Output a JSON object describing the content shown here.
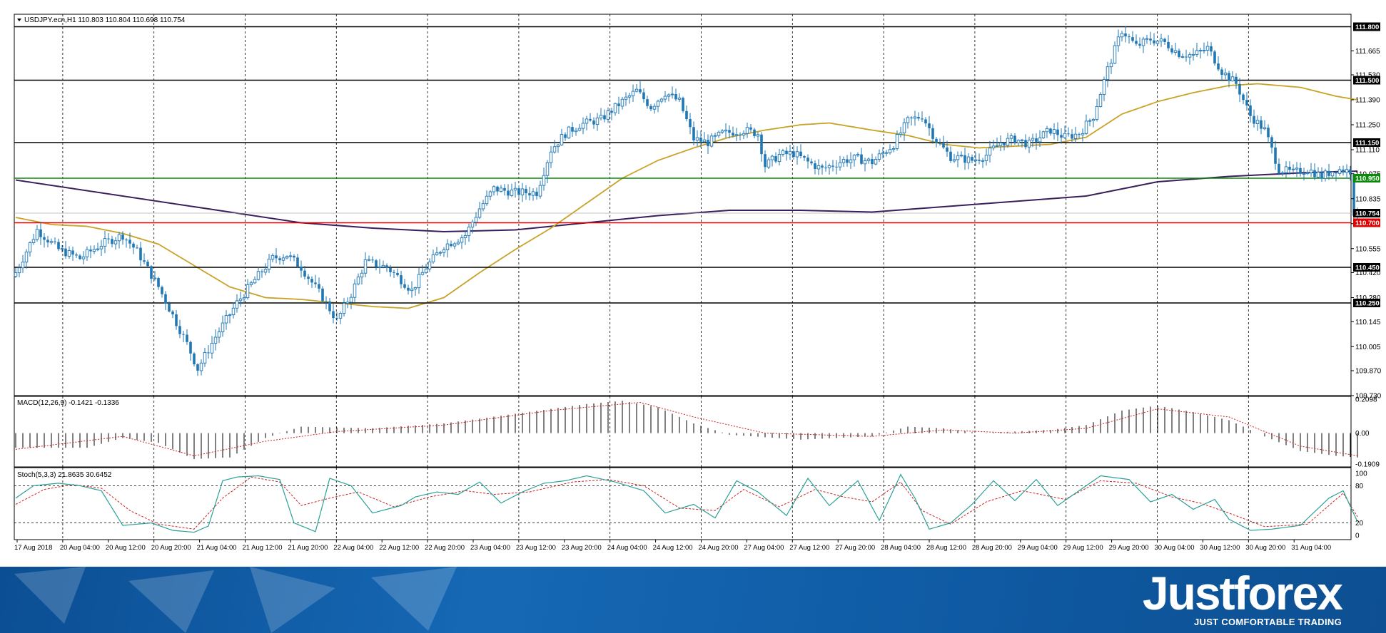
{
  "header": {
    "symbol_info": "USDJPY.ecn,H1  110.803 110.804 110.698 110.754"
  },
  "indicators": {
    "macd_label": "MACD(12,26,9) -0.1421 -0.1336",
    "stoch_label": "Stoch(5,3,3) 21.8635 30.6452"
  },
  "colors": {
    "candle": "#1f77b4",
    "sma_fast": "#c9a227",
    "sma_slow": "#3b1f5c",
    "support_resistance": "#000000",
    "green_level": "#0a8a0a",
    "red_level": "#e00000",
    "stoch_main": "#2aa198",
    "stoch_signal": "#cc2222"
  },
  "brand": {
    "name": "Justforex",
    "tagline": "JUST COMFORTABLE TRADING"
  },
  "chart_data": [
    {
      "type": "candlestick",
      "symbol": "USDJPY.ecn",
      "timeframe": "H1",
      "ylim": [
        109.73,
        111.87
      ],
      "y_ticks": [
        "111.665",
        "111.530",
        "111.390",
        "111.250",
        "111.110",
        "110.975",
        "110.835",
        "110.695",
        "110.555",
        "110.420",
        "110.280",
        "110.145",
        "110.005",
        "109.870",
        "109.730"
      ],
      "x_ticks": [
        "17 Aug 2018",
        "20 Aug 04:00",
        "20 Aug 12:00",
        "20 Aug 20:00",
        "21 Aug 04:00",
        "21 Aug 12:00",
        "21 Aug 20:00",
        "22 Aug 04:00",
        "22 Aug 12:00",
        "22 Aug 20:00",
        "23 Aug 04:00",
        "23 Aug 12:00",
        "23 Aug 20:00",
        "24 Aug 04:00",
        "24 Aug 12:00",
        "24 Aug 20:00",
        "27 Aug 04:00",
        "27 Aug 12:00",
        "27 Aug 20:00",
        "28 Aug 04:00",
        "28 Aug 12:00",
        "28 Aug 20:00",
        "29 Aug 04:00",
        "29 Aug 12:00",
        "29 Aug 20:00",
        "30 Aug 04:00",
        "30 Aug 12:00",
        "30 Aug 20:00",
        "31 Aug 04:00"
      ],
      "current_price": "110.754",
      "horizontal_levels": [
        {
          "value": 111.8,
          "label": "111.800",
          "color": "#000000"
        },
        {
          "value": 111.5,
          "label": "111.500",
          "color": "#000000"
        },
        {
          "value": 111.15,
          "label": "111.150",
          "color": "#000000"
        },
        {
          "value": 110.95,
          "label": "110.950",
          "color": "#0a8a0a"
        },
        {
          "value": 110.7,
          "label": "110.700",
          "color": "#e00000"
        },
        {
          "value": 110.45,
          "label": "110.450",
          "color": "#000000"
        },
        {
          "value": 110.25,
          "label": "110.250",
          "color": "#000000"
        }
      ],
      "close_path": [
        [
          0,
          110.42
        ],
        [
          6,
          110.66
        ],
        [
          12,
          110.55
        ],
        [
          18,
          110.5
        ],
        [
          24,
          110.58
        ],
        [
          30,
          110.63
        ],
        [
          34,
          110.54
        ],
        [
          40,
          110.34
        ],
        [
          44,
          110.18
        ],
        [
          48,
          110.02
        ],
        [
          51,
          109.88
        ],
        [
          56,
          110.06
        ],
        [
          62,
          110.25
        ],
        [
          67,
          110.38
        ],
        [
          72,
          110.5
        ],
        [
          76,
          110.52
        ],
        [
          80,
          110.45
        ],
        [
          86,
          110.28
        ],
        [
          90,
          110.15
        ],
        [
          94,
          110.3
        ],
        [
          98,
          110.48
        ],
        [
          104,
          110.45
        ],
        [
          108,
          110.38
        ],
        [
          111,
          110.32
        ],
        [
          115,
          110.45
        ],
        [
          120,
          110.57
        ],
        [
          126,
          110.63
        ],
        [
          130,
          110.78
        ],
        [
          134,
          110.89
        ],
        [
          140,
          110.87
        ],
        [
          146,
          110.87
        ],
        [
          150,
          111.11
        ],
        [
          154,
          111.2
        ],
        [
          158,
          111.25
        ],
        [
          164,
          111.28
        ],
        [
          170,
          111.38
        ],
        [
          174,
          111.44
        ],
        [
          178,
          111.35
        ],
        [
          182,
          111.43
        ],
        [
          186,
          111.38
        ],
        [
          190,
          111.17
        ],
        [
          194,
          111.15
        ],
        [
          198,
          111.2
        ],
        [
          204,
          111.22
        ],
        [
          208,
          111.2
        ],
        [
          210,
          111.02
        ],
        [
          214,
          111.08
        ],
        [
          218,
          111.09
        ],
        [
          222,
          111.04
        ],
        [
          226,
          111.0
        ],
        [
          232,
          111.05
        ],
        [
          236,
          111.06
        ],
        [
          240,
          111.04
        ],
        [
          246,
          111.14
        ],
        [
          250,
          111.27
        ],
        [
          254,
          111.3
        ],
        [
          258,
          111.16
        ],
        [
          262,
          111.07
        ],
        [
          268,
          111.05
        ],
        [
          272,
          111.08
        ],
        [
          276,
          111.15
        ],
        [
          280,
          111.17
        ],
        [
          284,
          111.14
        ],
        [
          290,
          111.22
        ],
        [
          294,
          111.18
        ],
        [
          298,
          111.2
        ],
        [
          302,
          111.3
        ],
        [
          306,
          111.56
        ],
        [
          310,
          111.78
        ],
        [
          314,
          111.69
        ],
        [
          318,
          111.73
        ],
        [
          322,
          111.71
        ],
        [
          326,
          111.65
        ],
        [
          330,
          111.64
        ],
        [
          334,
          111.68
        ],
        [
          338,
          111.55
        ],
        [
          342,
          111.48
        ],
        [
          346,
          111.3
        ],
        [
          350,
          111.22
        ],
        [
          354,
          111.0
        ],
        [
          358,
          110.98
        ],
        [
          362,
          111.0
        ],
        [
          366,
          110.96
        ],
        [
          370,
          111.0
        ],
        [
          374,
          110.99
        ],
        [
          375,
          110.76
        ],
        [
          376,
          110.75
        ]
      ],
      "sma_fast": [
        [
          0,
          110.73
        ],
        [
          10,
          110.69
        ],
        [
          20,
          110.68
        ],
        [
          30,
          110.64
        ],
        [
          40,
          110.58
        ],
        [
          50,
          110.46
        ],
        [
          60,
          110.34
        ],
        [
          70,
          110.28
        ],
        [
          80,
          110.27
        ],
        [
          90,
          110.25
        ],
        [
          100,
          110.23
        ],
        [
          110,
          110.22
        ],
        [
          120,
          110.28
        ],
        [
          130,
          110.42
        ],
        [
          140,
          110.55
        ],
        [
          150,
          110.67
        ],
        [
          160,
          110.81
        ],
        [
          170,
          110.95
        ],
        [
          180,
          111.05
        ],
        [
          190,
          111.12
        ],
        [
          200,
          111.18
        ],
        [
          210,
          111.22
        ],
        [
          220,
          111.25
        ],
        [
          228,
          111.26
        ],
        [
          240,
          111.22
        ],
        [
          250,
          111.19
        ],
        [
          260,
          111.14
        ],
        [
          270,
          111.12
        ],
        [
          280,
          111.13
        ],
        [
          290,
          111.14
        ],
        [
          300,
          111.18
        ],
        [
          310,
          111.31
        ],
        [
          320,
          111.38
        ],
        [
          330,
          111.43
        ],
        [
          340,
          111.47
        ],
        [
          348,
          111.48
        ],
        [
          360,
          111.46
        ],
        [
          370,
          111.41
        ],
        [
          376,
          111.39
        ]
      ],
      "sma_slow": [
        [
          0,
          110.94
        ],
        [
          20,
          110.88
        ],
        [
          40,
          110.82
        ],
        [
          60,
          110.76
        ],
        [
          80,
          110.7
        ],
        [
          100,
          110.67
        ],
        [
          120,
          110.65
        ],
        [
          140,
          110.66
        ],
        [
          160,
          110.7
        ],
        [
          180,
          110.74
        ],
        [
          200,
          110.77
        ],
        [
          220,
          110.77
        ],
        [
          240,
          110.76
        ],
        [
          260,
          110.79
        ],
        [
          280,
          110.82
        ],
        [
          300,
          110.85
        ],
        [
          320,
          110.93
        ],
        [
          340,
          110.96
        ],
        [
          360,
          110.98
        ],
        [
          376,
          110.99
        ]
      ],
      "macd": {
        "ylim": [
          -0.1909,
          0.2098
        ],
        "y_ticks": [
          "0.2098",
          "0.00",
          "-0.1909"
        ],
        "histogram": [
          [
            0,
            -0.09
          ],
          [
            20,
            -0.09
          ],
          [
            30,
            -0.03
          ],
          [
            40,
            -0.06
          ],
          [
            50,
            -0.16
          ],
          [
            60,
            -0.15
          ],
          [
            70,
            -0.03
          ],
          [
            80,
            0.04
          ],
          [
            100,
            0.03
          ],
          [
            120,
            0.06
          ],
          [
            140,
            0.12
          ],
          [
            160,
            0.18
          ],
          [
            170,
            0.2
          ],
          [
            180,
            0.16
          ],
          [
            190,
            0.06
          ],
          [
            200,
            -0.01
          ],
          [
            220,
            -0.04
          ],
          [
            240,
            -0.02
          ],
          [
            250,
            0.04
          ],
          [
            260,
            0.03
          ],
          [
            270,
            0.0
          ],
          [
            280,
            0.01
          ],
          [
            290,
            0.02
          ],
          [
            300,
            0.05
          ],
          [
            310,
            0.14
          ],
          [
            320,
            0.17
          ],
          [
            330,
            0.13
          ],
          [
            340,
            0.08
          ],
          [
            350,
            -0.02
          ],
          [
            360,
            -0.11
          ],
          [
            370,
            -0.14
          ],
          [
            376,
            -0.15
          ]
        ],
        "signal": [
          [
            0,
            -0.1
          ],
          [
            30,
            -0.02
          ],
          [
            50,
            -0.14
          ],
          [
            70,
            -0.05
          ],
          [
            90,
            0.01
          ],
          [
            120,
            0.05
          ],
          [
            150,
            0.14
          ],
          [
            175,
            0.19
          ],
          [
            190,
            0.1
          ],
          [
            210,
            0.0
          ],
          [
            240,
            -0.02
          ],
          [
            260,
            0.02
          ],
          [
            280,
            0.0
          ],
          [
            300,
            0.03
          ],
          [
            320,
            0.15
          ],
          [
            340,
            0.1
          ],
          [
            360,
            -0.08
          ],
          [
            376,
            -0.14
          ]
        ]
      },
      "stochastic": {
        "ylim": [
          0,
          100
        ],
        "y_ticks": [
          "100",
          "80",
          "20",
          "0"
        ],
        "main": [
          [
            0,
            60
          ],
          [
            5,
            80
          ],
          [
            12,
            84
          ],
          [
            18,
            80
          ],
          [
            24,
            72
          ],
          [
            30,
            16
          ],
          [
            38,
            20
          ],
          [
            44,
            8
          ],
          [
            50,
            5
          ],
          [
            54,
            15
          ],
          [
            58,
            88
          ],
          [
            62,
            94
          ],
          [
            68,
            96
          ],
          [
            74,
            90
          ],
          [
            78,
            20
          ],
          [
            84,
            6
          ],
          [
            88,
            92
          ],
          [
            94,
            80
          ],
          [
            100,
            36
          ],
          [
            108,
            48
          ],
          [
            112,
            62
          ],
          [
            118,
            70
          ],
          [
            124,
            66
          ],
          [
            130,
            86
          ],
          [
            136,
            52
          ],
          [
            142,
            70
          ],
          [
            148,
            84
          ],
          [
            154,
            88
          ],
          [
            160,
            96
          ],
          [
            168,
            86
          ],
          [
            176,
            72
          ],
          [
            182,
            36
          ],
          [
            190,
            50
          ],
          [
            196,
            28
          ],
          [
            202,
            88
          ],
          [
            208,
            70
          ],
          [
            216,
            32
          ],
          [
            222,
            92
          ],
          [
            228,
            48
          ],
          [
            236,
            88
          ],
          [
            242,
            24
          ],
          [
            248,
            98
          ],
          [
            252,
            60
          ],
          [
            256,
            10
          ],
          [
            262,
            20
          ],
          [
            268,
            50
          ],
          [
            274,
            88
          ],
          [
            280,
            56
          ],
          [
            286,
            90
          ],
          [
            292,
            48
          ],
          [
            298,
            72
          ],
          [
            304,
            96
          ],
          [
            312,
            90
          ],
          [
            318,
            54
          ],
          [
            324,
            66
          ],
          [
            330,
            42
          ],
          [
            336,
            58
          ],
          [
            340,
            26
          ],
          [
            346,
            8
          ],
          [
            352,
            10
          ],
          [
            360,
            16
          ],
          [
            368,
            60
          ],
          [
            372,
            72
          ],
          [
            376,
            22
          ]
        ],
        "signal": [
          [
            0,
            50
          ],
          [
            8,
            74
          ],
          [
            16,
            82
          ],
          [
            24,
            76
          ],
          [
            32,
            40
          ],
          [
            40,
            18
          ],
          [
            50,
            10
          ],
          [
            58,
            60
          ],
          [
            66,
            94
          ],
          [
            74,
            86
          ],
          [
            80,
            48
          ],
          [
            88,
            60
          ],
          [
            96,
            70
          ],
          [
            106,
            46
          ],
          [
            116,
            62
          ],
          [
            126,
            72
          ],
          [
            134,
            66
          ],
          [
            144,
            70
          ],
          [
            156,
            86
          ],
          [
            166,
            90
          ],
          [
            176,
            80
          ],
          [
            186,
            44
          ],
          [
            196,
            40
          ],
          [
            204,
            74
          ],
          [
            214,
            46
          ],
          [
            224,
            74
          ],
          [
            232,
            62
          ],
          [
            240,
            54
          ],
          [
            248,
            86
          ],
          [
            254,
            40
          ],
          [
            262,
            18
          ],
          [
            272,
            54
          ],
          [
            282,
            72
          ],
          [
            294,
            58
          ],
          [
            304,
            88
          ],
          [
            314,
            84
          ],
          [
            324,
            62
          ],
          [
            332,
            52
          ],
          [
            340,
            36
          ],
          [
            350,
            14
          ],
          [
            362,
            18
          ],
          [
            372,
            68
          ],
          [
            376,
            30
          ]
        ]
      }
    }
  ]
}
